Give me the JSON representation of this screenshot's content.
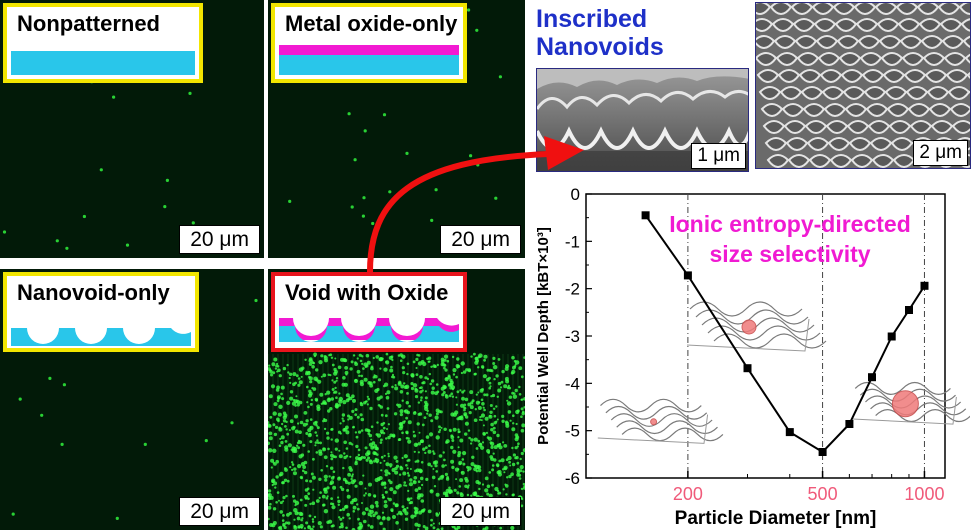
{
  "panels": [
    {
      "label": "Nonpatterned",
      "scale": "20 μm",
      "dots": 14,
      "seed": 3
    },
    {
      "label": "Metal oxide-only",
      "scale": "20 μm",
      "dots": 28,
      "seed": 11
    },
    {
      "label": "Nanovoid-only",
      "scale": "20 μm",
      "dots": 16,
      "seed": 7
    },
    {
      "label": "Void with Oxide",
      "scale": "20 μm",
      "dots": 1400,
      "seed": 19
    }
  ],
  "sem": {
    "title_line1": "Inscribed",
    "title_line2": "Nanovoids",
    "left_scale": "1 μm",
    "right_scale": "2 μm"
  },
  "colors": {
    "substrate": "#29c6ea",
    "oxide": "#f21ad2",
    "label_border_yellow": "#f2e600",
    "label_border_red": "#e8141c",
    "arrow": "#f01010",
    "chart_annotation": "#f01ad2",
    "highlight_tick": "#f05a7a"
  },
  "chart_data": {
    "type": "line",
    "x": [
      150,
      200,
      300,
      400,
      500,
      600,
      700,
      800,
      900,
      1000
    ],
    "y": [
      -0.45,
      -1.72,
      -3.68,
      -5.03,
      -5.45,
      -4.86,
      -3.87,
      -3.01,
      -2.45,
      -1.94
    ],
    "xlabel": "Particle Diameter [nm]",
    "ylabel": "Potential Well Depth [kBT×10³]",
    "ylim": [
      -6,
      0
    ],
    "yticks": [
      0,
      -1,
      -2,
      -3,
      -4,
      -5,
      -6
    ],
    "xticks": [
      "200",
      "500",
      "1000"
    ],
    "annotation_line1": "Ionic entropy-directed",
    "annotation_line2": "size selectivity",
    "marker": "square",
    "line_color": "#000000"
  }
}
